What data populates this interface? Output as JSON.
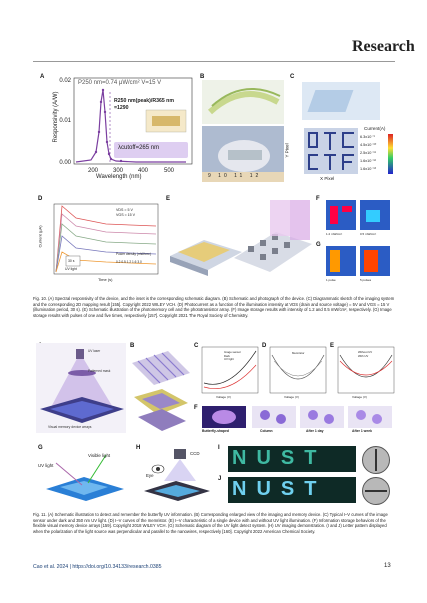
{
  "header": {
    "journal": "Research"
  },
  "fig10": {
    "caption": "Fig. 10. (A) Spectral responsivity of the device, and the inset is the corresponding schematic diagram. (B) Schematic and photograph of the device. (C) Diagrammatic sketch of the imaging system and the corresponding 2D mapping result [155]. Copyright 2022 WILEY VCH. (D) Photocurrent as a function of the illumination intensity at VDS (drain and source voltage) = 5V and VGS = 15 V (illumination period, 30 s). (E) Schematic illustration of the photomemory cell and the phototransistor array. (F) Image storage results with intensity of 1.2 and 0.5 mW/cm², respectively. (G) Image storage results with pulses of one and five times, respectively [157]. Copyright 2021 The Royal Society of Chemistry.",
    "panelA": {
      "label": "A",
      "annotation_top": "P250 nm=0.74 μW/cm²  V=15 V",
      "annotation_ratio": "R250 nm(peak)/R365 nm",
      "annotation_ratio_value": "=1290",
      "annotation_cutoff": "λcutoff=265 nm",
      "ylabel": "Responsivity (A/W)",
      "xlabel": "Wavelength (nm)"
    },
    "panelB": {
      "label": "B",
      "ruler": "9  10  11  12"
    },
    "panelC": {
      "label": "C",
      "legend_title": "Current(A)",
      "legend_values": [
        "6.3x10⁻⁹",
        "4.5x10⁻¹⁰",
        "2.5x10⁻¹¹",
        "1.6x10⁻¹²",
        "1.6x10⁻¹³"
      ],
      "xlabel": "X Pixel",
      "ylabel": "Y Pixel"
    },
    "panelD": {
      "label": "D",
      "ylabel": "Current (μA)",
      "xlabel": "Time (s)",
      "bias": "VDS = 5 V\nVGS = 15 V",
      "uv": "UV light",
      "pulse": "30 s",
      "legend_title": "Power density (mW/cm²)",
      "legend_values": [
        "0.2",
        "0.5",
        "1.2",
        "1.6",
        "3.0"
      ]
    },
    "panelE": {
      "label": "E"
    },
    "panelF": {
      "label": "F",
      "labels": [
        "1.2 mW/cm²",
        "0.5 mW/cm²"
      ]
    },
    "panelG": {
      "label": "G",
      "labels": [
        "1 pulse",
        "5 pulses"
      ]
    }
  },
  "fig11": {
    "caption": "Fig. 11. (A) Schematic illustration to detect and remember the butterfly UV information. (B) Corresponding enlarged view of the imaging and memory device. (C) Typical I–V curves of the image sensor under dark and 350 nm UV light. (D) I–V curves of the memristor. (E) I–V characteristic of a single device with and without UV light illumination. (F) Information storage behaviors of the flexible visual memory device arrays [159]. Copyright 2018 WILEY VCH. (G) Schematic diagram of the UV light detect system. (H) UV imaging demonstration. (I and J) Letter pattern displayed when the polarization of the light source was perpendicular and parallel to the nanowires, respectively [160]. Copyright 2022 American Chemical Society.",
    "panelA": {
      "label": "A",
      "uv": "UV laser",
      "mask": "Patterned mask",
      "bottom": "Visual memory device arrays"
    },
    "panelB": {
      "label": "B"
    },
    "panelC": {
      "label": "C",
      "legend": [
        "Image sensor",
        "Dark",
        "UV light"
      ],
      "xlabel": "Voltage (V)"
    },
    "panelD": {
      "label": "D",
      "legend": "Memristor",
      "xlabel": "Voltage (V)"
    },
    "panelE": {
      "label": "E",
      "legend": [
        "Without UV",
        "With UV"
      ],
      "xlabel": "Voltage (V)"
    },
    "panelF": {
      "label": "F",
      "labels": [
        "Butterfly-shaped",
        "Column",
        "After 1 day",
        "After 1 week"
      ]
    },
    "panelG": {
      "label": "G",
      "labels": [
        "UV light",
        "Visible light"
      ]
    },
    "panelH": {
      "label": "H",
      "labels": [
        "CCD",
        "Eye"
      ]
    },
    "panelI": {
      "label": "I",
      "text": "NUST"
    },
    "panelJ": {
      "label": "J",
      "text": "NUST"
    }
  },
  "footer": {
    "citation": "Cao et al. 2024 | https://doi.org/10.34133/research.0385",
    "page": "13"
  }
}
